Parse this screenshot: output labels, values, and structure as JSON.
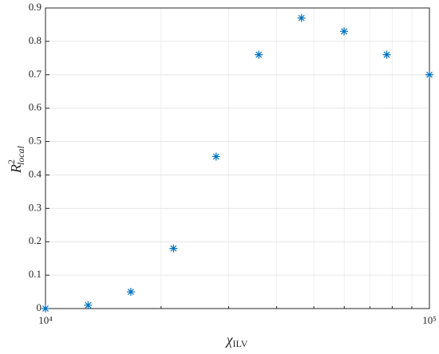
{
  "chart_data": {
    "type": "scatter",
    "marker": "asterisk",
    "color": "#0072bd",
    "xscale": "log",
    "grid": true,
    "x_label": {
      "base": "χ",
      "sub": "ILV"
    },
    "y_label": {
      "base": "R",
      "sup": "2",
      "sub": "local"
    },
    "x": [
      10000,
      12915,
      16681,
      21544,
      27826,
      35938,
      46416,
      59948,
      77426,
      100000
    ],
    "values": [
      0,
      0.01,
      0.05,
      0.18,
      0.455,
      0.76,
      0.87,
      0.83,
      0.76,
      0.7
    ],
    "xlim": [
      10000,
      100000
    ],
    "xticks": [
      {
        "value": 10000,
        "label": "10⁴"
      },
      {
        "value": 100000,
        "label": "10⁵"
      }
    ],
    "ylim": [
      0,
      0.9
    ],
    "yticks": [
      0,
      0.1,
      0.2,
      0.3,
      0.4,
      0.5,
      0.6,
      0.7,
      0.8,
      0.9
    ]
  }
}
